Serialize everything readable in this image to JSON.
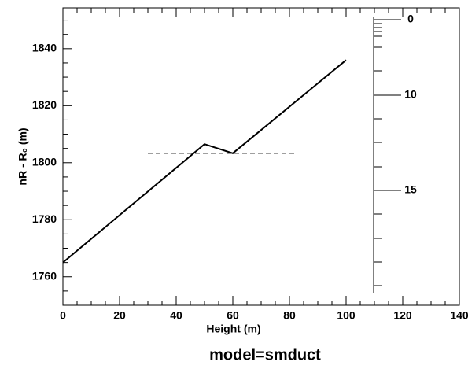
{
  "chart_data": {
    "type": "line",
    "title": "model=smduct",
    "x_label": "Height (m)",
    "y_label": "nR - R₀ (m)",
    "series": [
      {
        "name": null,
        "color": "#000000",
        "dash": false,
        "x": [
          0,
          50,
          60,
          100
        ],
        "values": [
          1765,
          1806.5,
          1803.3,
          1836
        ]
      },
      {
        "name": null,
        "color": "#000000",
        "dash": true,
        "x": [
          30,
          82
        ],
        "values": [
          1803.3,
          1803.3
        ]
      }
    ],
    "xlim": [
      0,
      140
    ],
    "xticks": [
      0,
      20,
      40,
      60,
      80,
      100,
      120,
      140
    ],
    "ylim": [
      1750,
      1854.3
    ],
    "yticks": [
      1760,
      1780,
      1800,
      1820,
      1840
    ],
    "inset_scale_labels": [
      "0",
      "10",
      "15"
    ]
  }
}
